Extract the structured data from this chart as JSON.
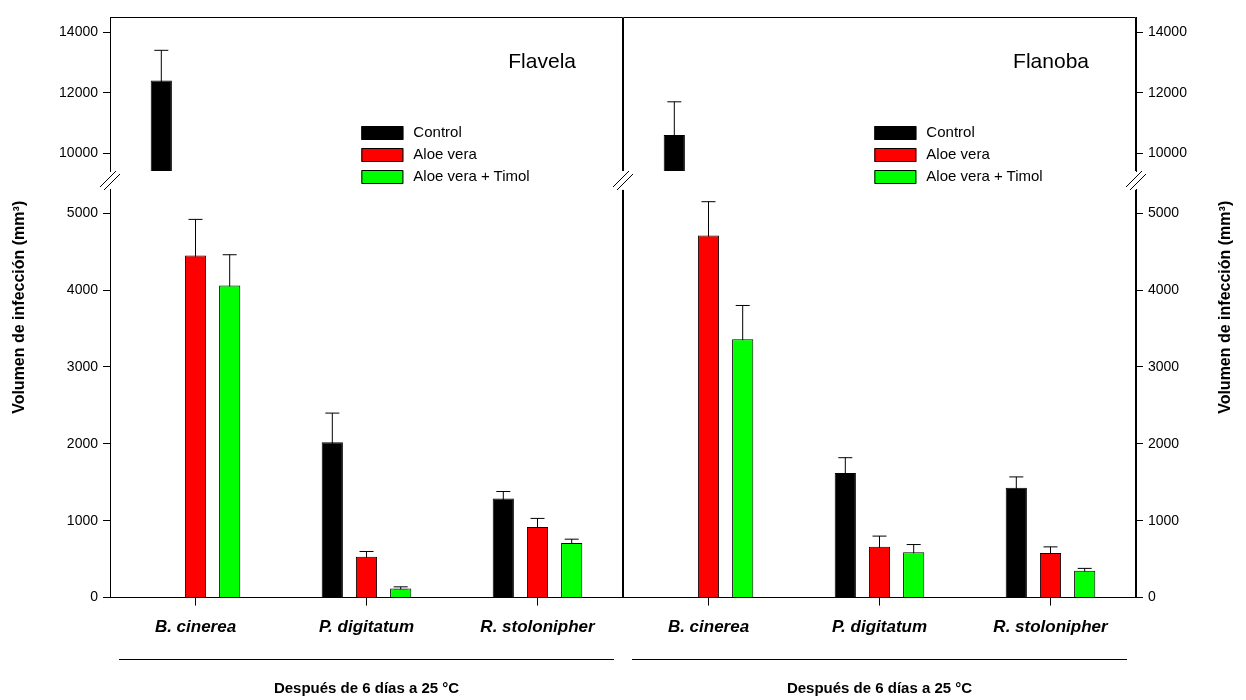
{
  "chart_data": [
    {
      "type": "bar",
      "title": "Flavela",
      "categories": [
        null,
        null,
        null
      ],
      "series": [
        {
          "name": "Control",
          "color": "#000000",
          "values": [
            12400,
            null,
            null
          ],
          "errors": [
            1000,
            null,
            null
          ]
        },
        {
          "name": "Aloe vera",
          "color": "#ff0000",
          "values": [
            null,
            null,
            null
          ]
        },
        {
          "name": "Aloe vera + Timol",
          "color": "#00ff00",
          "values": [
            null,
            null,
            null
          ]
        }
      ],
      "ylim": [
        9415,
        14500
      ],
      "yticks": [
        10000,
        12000,
        14000
      ],
      "grid": false,
      "tick_labels": "y",
      "legend": "bottom right"
    },
    {
      "type": "bar",
      "title": "Flanoba",
      "categories": [
        null,
        null,
        null
      ],
      "series": [
        {
          "name": "Control",
          "color": "#000000",
          "axis": "y2",
          "values": [
            10600,
            null,
            null
          ],
          "errors": [
            1100,
            null,
            null
          ]
        },
        {
          "name": "Aloe vera",
          "color": "#ff0000",
          "axis": "y2",
          "values": [
            null,
            null,
            null
          ]
        },
        {
          "name": "Aloe vera + Timol",
          "color": "#00ff00",
          "axis": "y2",
          "values": [
            null,
            null,
            null
          ]
        }
      ],
      "y2lim": [
        9415,
        14500
      ],
      "y2ticks": [
        10000,
        12000,
        14000
      ],
      "grid": false,
      "tick_labels": "y",
      "legend": "bottom right"
    },
    {
      "type": "bar",
      "xlabel": "Después de 6 días a 25 °C",
      "ylabel": "Volumen de infección (mm³)",
      "categories": [
        "B. cinerea",
        "P. digitatum",
        "R. stolonipher"
      ],
      "series": [
        {
          "color": "#000000",
          "values": [
            null,
            2020,
            1290
          ],
          "errors": [
            null,
            380,
            90
          ]
        },
        {
          "color": "#ff0000",
          "values": [
            4450,
            530,
            920
          ],
          "errors": [
            470,
            70,
            110
          ]
        },
        {
          "color": "#00ff00",
          "values": [
            4060,
            120,
            710
          ],
          "errors": [
            400,
            20,
            50
          ]
        }
      ],
      "ylim": [
        0,
        5310
      ],
      "yticks": [
        0,
        1000,
        2000,
        3000,
        4000,
        5000
      ],
      "grid": false
    },
    {
      "type": "bar",
      "xlabel": "Después de 6 días a 25 °C",
      "y2label": "Volumen de infección (mm³)",
      "categories": [
        "B. cinerea",
        "P. digitatum",
        "R. stolonipher"
      ],
      "series": [
        {
          "color": "#000000",
          "axis": "y2",
          "values": [
            null,
            1620,
            1430
          ],
          "errors": [
            null,
            200,
            140
          ]
        },
        {
          "color": "#ff0000",
          "axis": "y2",
          "values": [
            4710,
            660,
            580
          ],
          "errors": [
            440,
            140,
            80
          ]
        },
        {
          "color": "#00ff00",
          "axis": "y2",
          "values": [
            3360,
            590,
            350
          ],
          "errors": [
            440,
            100,
            30
          ]
        }
      ],
      "y2lim": [
        0,
        5310
      ],
      "y2ticks": [
        0,
        1000,
        2000,
        3000,
        4000,
        5000
      ],
      "grid": false
    }
  ]
}
